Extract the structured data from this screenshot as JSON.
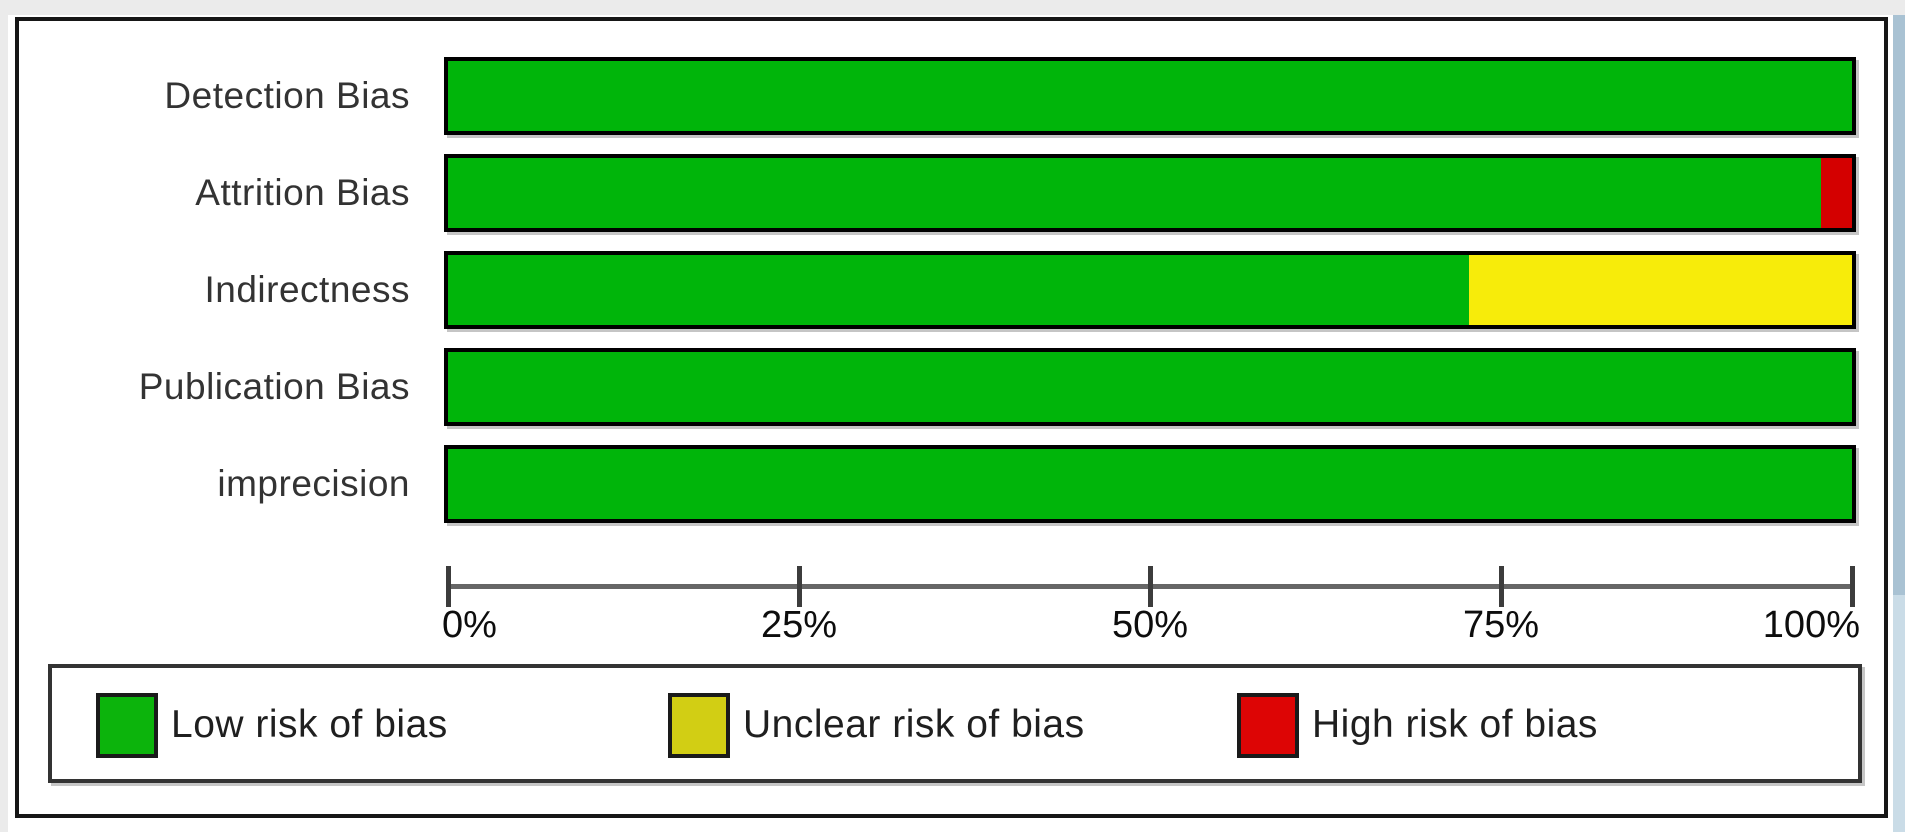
{
  "figure": {
    "kind": "risk-of-bias-graph"
  },
  "chart_data": {
    "type": "bar",
    "orientation": "horizontal-stacked",
    "title": "",
    "xlabel": "",
    "ylabel": "",
    "categories": [
      "Detection Bias",
      "Attrition Bias",
      "Indirectness",
      "Publication Bias",
      "imprecision"
    ],
    "series": [
      {
        "name": "Low risk of bias",
        "color": "#00b50a",
        "values": [
          100,
          97.8,
          72.7,
          100,
          100
        ]
      },
      {
        "name": "Unclear risk of bias",
        "color": "#f7ec0a",
        "values": [
          0,
          0,
          27.3,
          0,
          0
        ]
      },
      {
        "name": "High risk of bias",
        "color": "#d40000",
        "values": [
          0,
          2.2,
          0,
          0,
          0
        ]
      }
    ],
    "xlim": [
      0,
      100
    ],
    "x_ticks": [
      "0%",
      "25%",
      "50%",
      "75%",
      "100%"
    ],
    "x_tick_values": [
      0,
      25,
      50,
      75,
      100
    ],
    "grid": false,
    "legend_position": "bottom",
    "legend": [
      {
        "label": "Low risk of bias",
        "color": "#0cb40c"
      },
      {
        "label": "Unclear risk of bias",
        "color": "#d2ce14"
      },
      {
        "label": "High risk of bias",
        "color": "#dd0505"
      }
    ]
  },
  "colors": {
    "bar_border": "#000000",
    "axis_line": "#666666",
    "frame_border": "#161616",
    "right_edge_strip": "#a9c2d3"
  }
}
